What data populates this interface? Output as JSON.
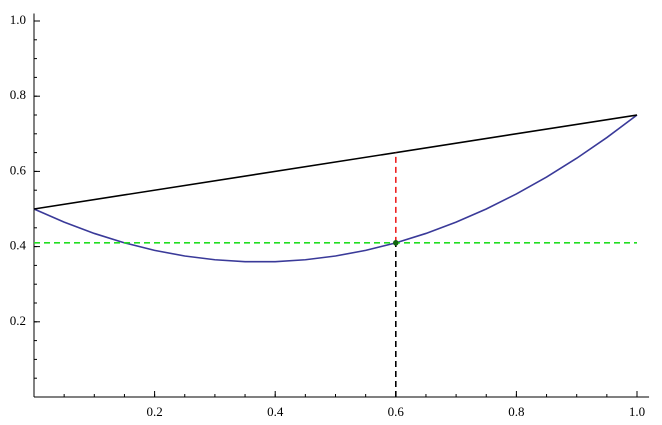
{
  "chart_data": {
    "type": "line",
    "xlim": [
      0,
      1.02
    ],
    "ylim": [
      0,
      1.02
    ],
    "xticks": [
      0.2,
      0.4,
      0.6,
      0.8,
      {
        "value": 1,
        "label": "1.0"
      }
    ],
    "yticks": [
      0.2,
      0.4,
      0.6,
      0.8,
      {
        "value": 1,
        "label": "1.0"
      }
    ],
    "series": [
      {
        "color": "#3a3a99",
        "dash": false,
        "x": [
          0,
          0.05,
          0.1,
          0.15,
          0.2,
          0.25,
          0.3,
          0.35,
          0.4,
          0.45,
          0.5,
          0.55,
          0.6,
          0.65,
          0.7,
          0.75,
          0.8,
          0.85,
          0.9,
          0.95,
          1
        ],
        "values": [
          0.5,
          0.465,
          0.435,
          0.41,
          0.39,
          0.375,
          0.365,
          0.36,
          0.36,
          0.365,
          0.375,
          0.39,
          0.41,
          0.435,
          0.465,
          0.5,
          0.54,
          0.585,
          0.635,
          0.69,
          0.75
        ]
      },
      {
        "color": "#000000",
        "dash": false,
        "x": [
          0,
          1
        ],
        "values": [
          0.5,
          0.75
        ]
      },
      {
        "color": "#22dd22",
        "dash": true,
        "x": [
          0,
          1
        ],
        "values": [
          0.41,
          0.41
        ]
      },
      {
        "color": "#ee2222",
        "dash": true,
        "x": [
          0.6,
          0.6
        ],
        "values": [
          0.41,
          0.65
        ]
      },
      {
        "color": "#000000",
        "dash": true,
        "x": [
          0.6,
          0.6
        ],
        "values": [
          0,
          0.41
        ]
      }
    ],
    "point": {
      "x": 0.6,
      "y": 0.41,
      "color": "#116611"
    }
  }
}
